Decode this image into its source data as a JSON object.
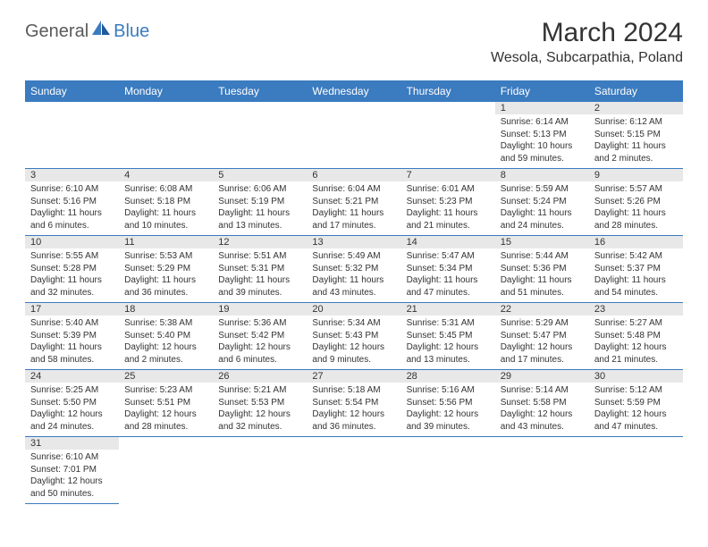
{
  "logo": {
    "general": "General",
    "blue": "Blue"
  },
  "title": "March 2024",
  "location": "Wesola, Subcarpathia, Poland",
  "colors": {
    "header_bg": "#3b7bbf",
    "header_text": "#ffffff",
    "daynum_bg": "#e8e8e8",
    "border": "#3b7bbf",
    "logo_gray": "#5a5a5a",
    "logo_blue": "#3b7bbf"
  },
  "weekdays": [
    "Sunday",
    "Monday",
    "Tuesday",
    "Wednesday",
    "Thursday",
    "Friday",
    "Saturday"
  ],
  "weeks": [
    [
      {
        "empty": true
      },
      {
        "empty": true
      },
      {
        "empty": true
      },
      {
        "empty": true
      },
      {
        "empty": true
      },
      {
        "day": "1",
        "sunrise": "Sunrise: 6:14 AM",
        "sunset": "Sunset: 5:13 PM",
        "daylight": "Daylight: 10 hours and 59 minutes."
      },
      {
        "day": "2",
        "sunrise": "Sunrise: 6:12 AM",
        "sunset": "Sunset: 5:15 PM",
        "daylight": "Daylight: 11 hours and 2 minutes."
      }
    ],
    [
      {
        "day": "3",
        "sunrise": "Sunrise: 6:10 AM",
        "sunset": "Sunset: 5:16 PM",
        "daylight": "Daylight: 11 hours and 6 minutes."
      },
      {
        "day": "4",
        "sunrise": "Sunrise: 6:08 AM",
        "sunset": "Sunset: 5:18 PM",
        "daylight": "Daylight: 11 hours and 10 minutes."
      },
      {
        "day": "5",
        "sunrise": "Sunrise: 6:06 AM",
        "sunset": "Sunset: 5:19 PM",
        "daylight": "Daylight: 11 hours and 13 minutes."
      },
      {
        "day": "6",
        "sunrise": "Sunrise: 6:04 AM",
        "sunset": "Sunset: 5:21 PM",
        "daylight": "Daylight: 11 hours and 17 minutes."
      },
      {
        "day": "7",
        "sunrise": "Sunrise: 6:01 AM",
        "sunset": "Sunset: 5:23 PM",
        "daylight": "Daylight: 11 hours and 21 minutes."
      },
      {
        "day": "8",
        "sunrise": "Sunrise: 5:59 AM",
        "sunset": "Sunset: 5:24 PM",
        "daylight": "Daylight: 11 hours and 24 minutes."
      },
      {
        "day": "9",
        "sunrise": "Sunrise: 5:57 AM",
        "sunset": "Sunset: 5:26 PM",
        "daylight": "Daylight: 11 hours and 28 minutes."
      }
    ],
    [
      {
        "day": "10",
        "sunrise": "Sunrise: 5:55 AM",
        "sunset": "Sunset: 5:28 PM",
        "daylight": "Daylight: 11 hours and 32 minutes."
      },
      {
        "day": "11",
        "sunrise": "Sunrise: 5:53 AM",
        "sunset": "Sunset: 5:29 PM",
        "daylight": "Daylight: 11 hours and 36 minutes."
      },
      {
        "day": "12",
        "sunrise": "Sunrise: 5:51 AM",
        "sunset": "Sunset: 5:31 PM",
        "daylight": "Daylight: 11 hours and 39 minutes."
      },
      {
        "day": "13",
        "sunrise": "Sunrise: 5:49 AM",
        "sunset": "Sunset: 5:32 PM",
        "daylight": "Daylight: 11 hours and 43 minutes."
      },
      {
        "day": "14",
        "sunrise": "Sunrise: 5:47 AM",
        "sunset": "Sunset: 5:34 PM",
        "daylight": "Daylight: 11 hours and 47 minutes."
      },
      {
        "day": "15",
        "sunrise": "Sunrise: 5:44 AM",
        "sunset": "Sunset: 5:36 PM",
        "daylight": "Daylight: 11 hours and 51 minutes."
      },
      {
        "day": "16",
        "sunrise": "Sunrise: 5:42 AM",
        "sunset": "Sunset: 5:37 PM",
        "daylight": "Daylight: 11 hours and 54 minutes."
      }
    ],
    [
      {
        "day": "17",
        "sunrise": "Sunrise: 5:40 AM",
        "sunset": "Sunset: 5:39 PM",
        "daylight": "Daylight: 11 hours and 58 minutes."
      },
      {
        "day": "18",
        "sunrise": "Sunrise: 5:38 AM",
        "sunset": "Sunset: 5:40 PM",
        "daylight": "Daylight: 12 hours and 2 minutes."
      },
      {
        "day": "19",
        "sunrise": "Sunrise: 5:36 AM",
        "sunset": "Sunset: 5:42 PM",
        "daylight": "Daylight: 12 hours and 6 minutes."
      },
      {
        "day": "20",
        "sunrise": "Sunrise: 5:34 AM",
        "sunset": "Sunset: 5:43 PM",
        "daylight": "Daylight: 12 hours and 9 minutes."
      },
      {
        "day": "21",
        "sunrise": "Sunrise: 5:31 AM",
        "sunset": "Sunset: 5:45 PM",
        "daylight": "Daylight: 12 hours and 13 minutes."
      },
      {
        "day": "22",
        "sunrise": "Sunrise: 5:29 AM",
        "sunset": "Sunset: 5:47 PM",
        "daylight": "Daylight: 12 hours and 17 minutes."
      },
      {
        "day": "23",
        "sunrise": "Sunrise: 5:27 AM",
        "sunset": "Sunset: 5:48 PM",
        "daylight": "Daylight: 12 hours and 21 minutes."
      }
    ],
    [
      {
        "day": "24",
        "sunrise": "Sunrise: 5:25 AM",
        "sunset": "Sunset: 5:50 PM",
        "daylight": "Daylight: 12 hours and 24 minutes."
      },
      {
        "day": "25",
        "sunrise": "Sunrise: 5:23 AM",
        "sunset": "Sunset: 5:51 PM",
        "daylight": "Daylight: 12 hours and 28 minutes."
      },
      {
        "day": "26",
        "sunrise": "Sunrise: 5:21 AM",
        "sunset": "Sunset: 5:53 PM",
        "daylight": "Daylight: 12 hours and 32 minutes."
      },
      {
        "day": "27",
        "sunrise": "Sunrise: 5:18 AM",
        "sunset": "Sunset: 5:54 PM",
        "daylight": "Daylight: 12 hours and 36 minutes."
      },
      {
        "day": "28",
        "sunrise": "Sunrise: 5:16 AM",
        "sunset": "Sunset: 5:56 PM",
        "daylight": "Daylight: 12 hours and 39 minutes."
      },
      {
        "day": "29",
        "sunrise": "Sunrise: 5:14 AM",
        "sunset": "Sunset: 5:58 PM",
        "daylight": "Daylight: 12 hours and 43 minutes."
      },
      {
        "day": "30",
        "sunrise": "Sunrise: 5:12 AM",
        "sunset": "Sunset: 5:59 PM",
        "daylight": "Daylight: 12 hours and 47 minutes."
      }
    ],
    [
      {
        "day": "31",
        "sunrise": "Sunrise: 6:10 AM",
        "sunset": "Sunset: 7:01 PM",
        "daylight": "Daylight: 12 hours and 50 minutes."
      },
      {
        "empty": true
      },
      {
        "empty": true
      },
      {
        "empty": true
      },
      {
        "empty": true
      },
      {
        "empty": true
      },
      {
        "empty": true
      }
    ]
  ]
}
